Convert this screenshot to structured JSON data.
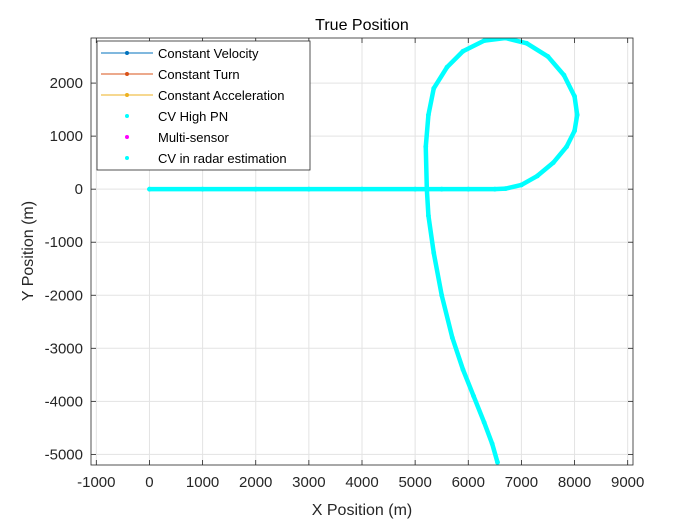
{
  "chart_data": {
    "type": "scatter",
    "title": "True Position",
    "xlabel": "X Position (m)",
    "ylabel": "Y Position (m)",
    "xlim": [
      -1100,
      9100
    ],
    "ylim": [
      -5200,
      2850
    ],
    "xticks": [
      -1000,
      0,
      1000,
      2000,
      3000,
      4000,
      5000,
      6000,
      7000,
      8000,
      9000
    ],
    "yticks": [
      -5000,
      -4000,
      -3000,
      -2000,
      -1000,
      0,
      1000,
      2000
    ],
    "xtick_labels": [
      "-1000",
      "0",
      "1000",
      "2000",
      "3000",
      "4000",
      "5000",
      "6000",
      "7000",
      "8000",
      "9000"
    ],
    "ytick_labels": [
      "-5000",
      "-4000",
      "-3000",
      "-2000",
      "-1000",
      "0",
      "1000",
      "2000"
    ],
    "grid": true,
    "legend_position": "top-left",
    "series": [
      {
        "name": "Constant Velocity",
        "color": "#0072BD",
        "style": "line-marker",
        "x": [],
        "y": []
      },
      {
        "name": "Constant Turn",
        "color": "#D95319",
        "style": "line-marker",
        "x": [],
        "y": []
      },
      {
        "name": "Constant Acceleration",
        "color": "#EDB120",
        "style": "line-marker",
        "x": [],
        "y": []
      },
      {
        "name": "CV High PN",
        "color": "#00FFFF",
        "style": "marker",
        "x": [],
        "y": []
      },
      {
        "name": "Multi-sensor",
        "color": "#FF00FF",
        "style": "marker",
        "x": [],
        "y": []
      },
      {
        "name": "CV in radar estimation",
        "color": "#00FFFF",
        "style": "marker",
        "x": [
          0,
          1000,
          2000,
          3000,
          4000,
          5000,
          5500,
          6000,
          6500,
          6700,
          7000,
          7300,
          7600,
          7850,
          8000,
          8050,
          8000,
          7800,
          7500,
          7100,
          6700,
          6300,
          5900,
          5600,
          5350,
          5250,
          5200,
          5220,
          5250,
          5350,
          5500,
          5700,
          5900,
          6100,
          6300,
          6450,
          6550
        ],
        "y": [
          0,
          0,
          0,
          0,
          0,
          0,
          0,
          0,
          0,
          10,
          80,
          250,
          500,
          800,
          1100,
          1400,
          1750,
          2150,
          2500,
          2750,
          2850,
          2800,
          2600,
          2300,
          1900,
          1400,
          800,
          0,
          -500,
          -1200,
          -2000,
          -2800,
          -3400,
          -3900,
          -4400,
          -4800,
          -5150
        ]
      }
    ]
  }
}
